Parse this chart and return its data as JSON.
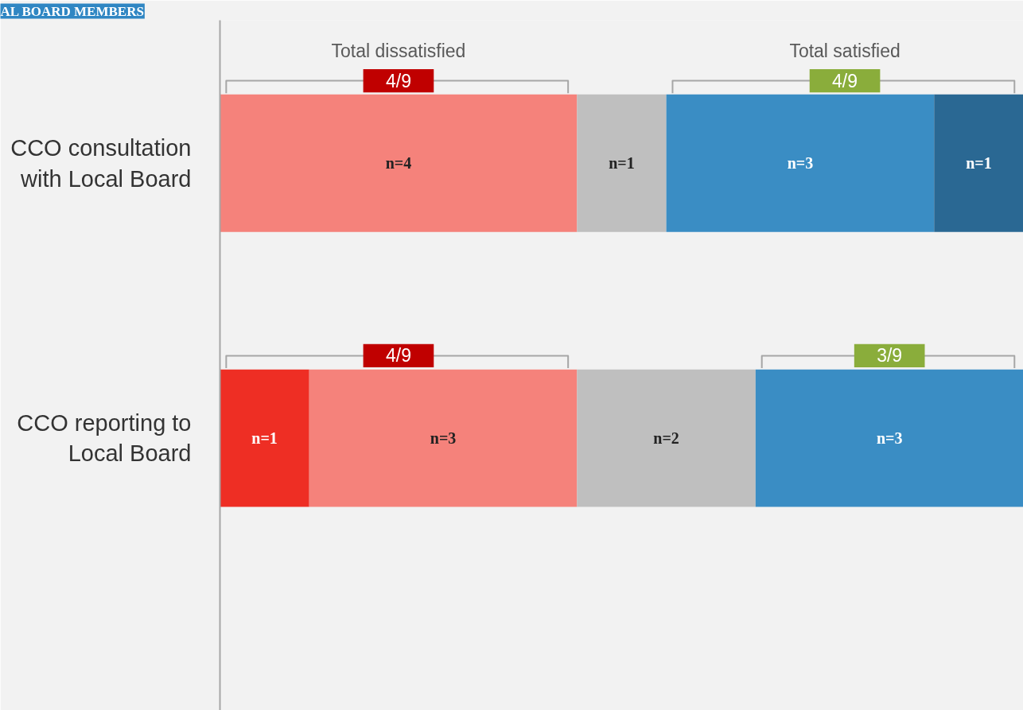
{
  "chart_data": {
    "type": "bar",
    "title": "AL BOARD MEMBERS",
    "orientation": "horizontal",
    "stacked": true,
    "tick_labels": "y",
    "grid": false,
    "categories": [
      "CCO consultation with Local Board",
      "CCO reporting to Local Board"
    ],
    "series": [
      {
        "color": "#ee2e24",
        "values": [
          0,
          1
        ],
        "value_labels": [
          null,
          "n=1"
        ]
      },
      {
        "color": "#f5827b",
        "values": [
          4,
          3
        ],
        "value_labels": [
          "n=4",
          "n=3"
        ]
      },
      {
        "color": "#bfbfbf",
        "values": [
          1,
          2
        ],
        "value_labels": [
          "n=1",
          "n=2"
        ]
      },
      {
        "color": "#3a8dc4",
        "values": [
          3,
          3
        ],
        "value_labels": [
          "n=3",
          "n=3"
        ]
      },
      {
        "color": "#2a6893",
        "values": [
          1,
          0
        ],
        "value_labels": [
          "n=1",
          null
        ]
      }
    ],
    "annotations": [
      "Total dissatisfied",
      "Total satisfied",
      "4/9",
      "4/9",
      "4/9",
      "3/9"
    ]
  }
}
